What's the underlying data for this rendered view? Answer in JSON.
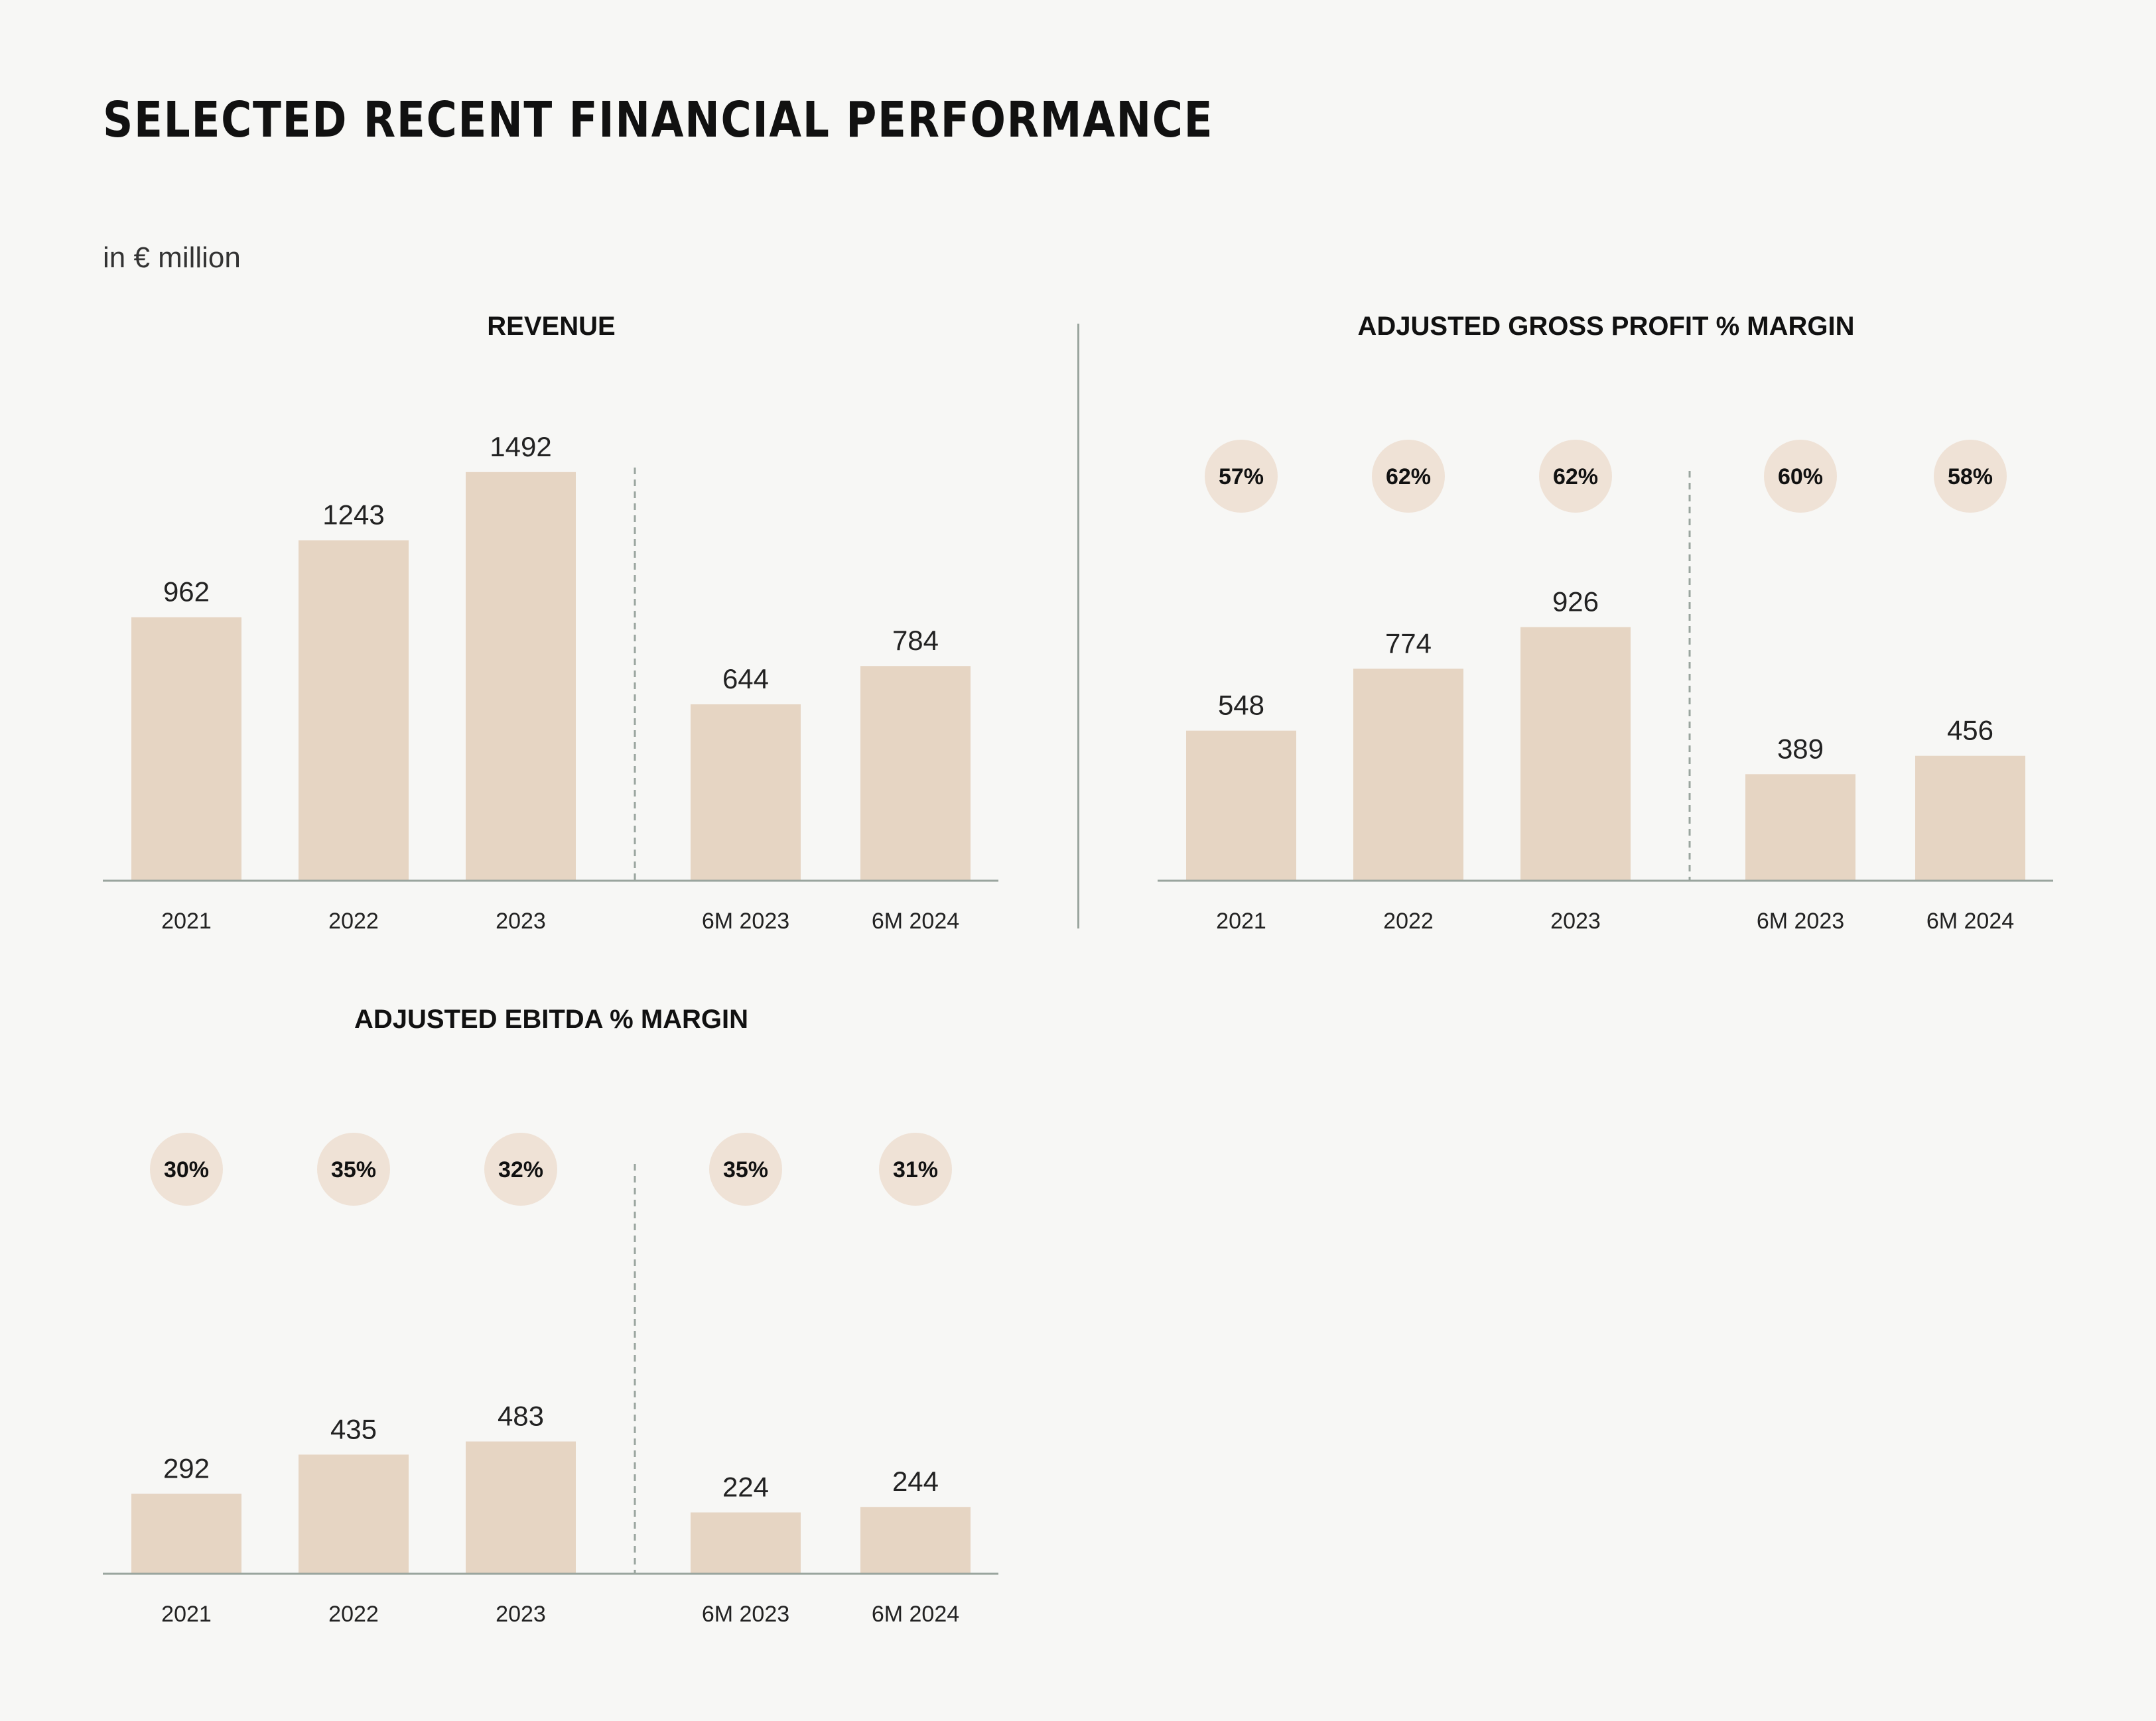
{
  "title": "SELECTED RECENT FINANCIAL PERFORMANCE",
  "unit": "in € million",
  "colors": {
    "bar": "#e6d5c3",
    "bubble": "#efe2d6",
    "axis": "#9aa59e",
    "background": "#f7f7f5"
  },
  "chart_data": [
    {
      "type": "bar",
      "title": "REVENUE",
      "categories": [
        "2021",
        "2022",
        "2023",
        "6M 2023",
        "6M 2024"
      ],
      "values": [
        962,
        1243,
        1492,
        644,
        784
      ],
      "ylim": [
        0,
        1600
      ]
    },
    {
      "type": "bar",
      "title": "ADJUSTED GROSS PROFIT % MARGIN",
      "categories": [
        "2021",
        "2022",
        "2023",
        "6M 2023",
        "6M 2024"
      ],
      "values": [
        548,
        774,
        926,
        389,
        456
      ],
      "margins": [
        "57%",
        "62%",
        "62%",
        "60%",
        "58%"
      ],
      "ylim": [
        0,
        1600
      ]
    },
    {
      "type": "bar",
      "title": "ADJUSTED EBITDA % MARGIN",
      "categories": [
        "2021",
        "2022",
        "2023",
        "6M 2023",
        "6M 2024"
      ],
      "values": [
        292,
        435,
        483,
        224,
        244
      ],
      "margins": [
        "30%",
        "35%",
        "32%",
        "35%",
        "31%"
      ],
      "ylim": [
        0,
        1600
      ]
    }
  ]
}
